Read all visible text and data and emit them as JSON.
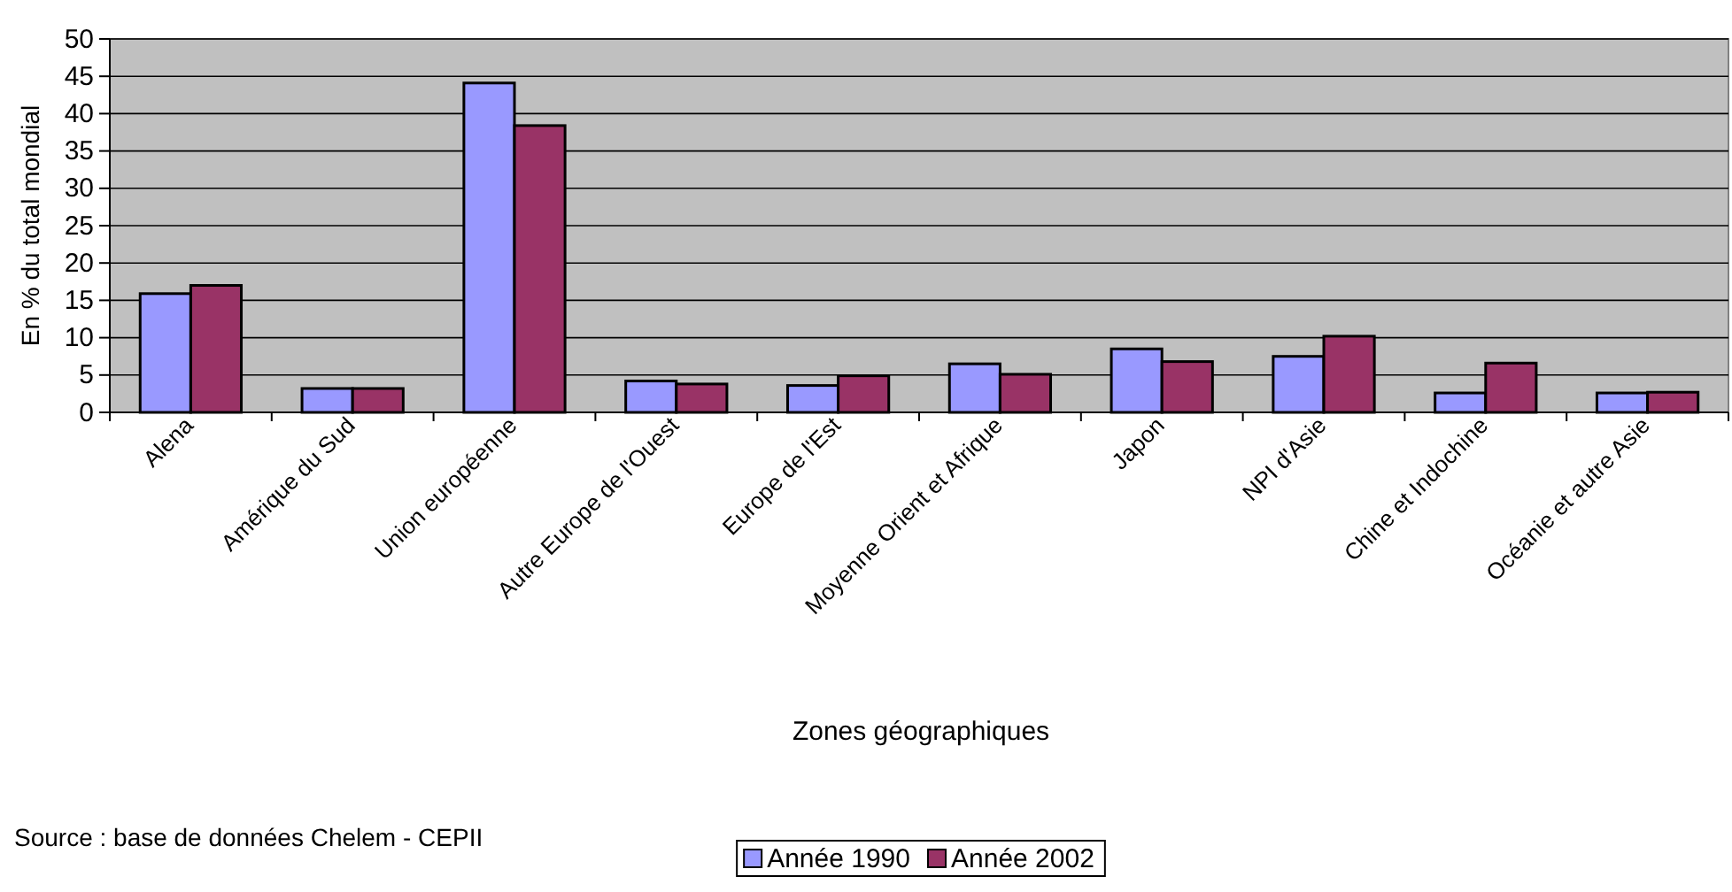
{
  "chart_data": {
    "type": "bar",
    "xlabel": "Zones géographiques",
    "ylabel": "En % du total mondial",
    "categories": [
      "Alena",
      "Amérique du Sud",
      "Union européenne",
      "Autre Europe de l'Ouest",
      "Europe de l'Est",
      "Moyenne Orient et Afrique",
      "Japon",
      "NPI d'Asie",
      "Chine et Indochine",
      "Océanie et autre Asie"
    ],
    "series": [
      {
        "name": "Année 1990",
        "color": "#9999ff",
        "values": [
          15.9,
          3.2,
          44.1,
          4.2,
          3.6,
          6.5,
          8.5,
          7.5,
          2.6,
          2.6
        ]
      },
      {
        "name": "Année 2002",
        "color": "#993366",
        "values": [
          17.0,
          3.2,
          38.4,
          3.8,
          4.9,
          5.1,
          6.8,
          10.2,
          6.6,
          2.7
        ]
      }
    ],
    "ylim": [
      0,
      50
    ],
    "yticks": [
      0,
      5,
      10,
      15,
      20,
      25,
      30,
      35,
      40,
      45,
      50
    ],
    "grid": "y",
    "legend": "bottom",
    "annotations": [
      "Source : base de données Chelem - CEPII"
    ]
  }
}
